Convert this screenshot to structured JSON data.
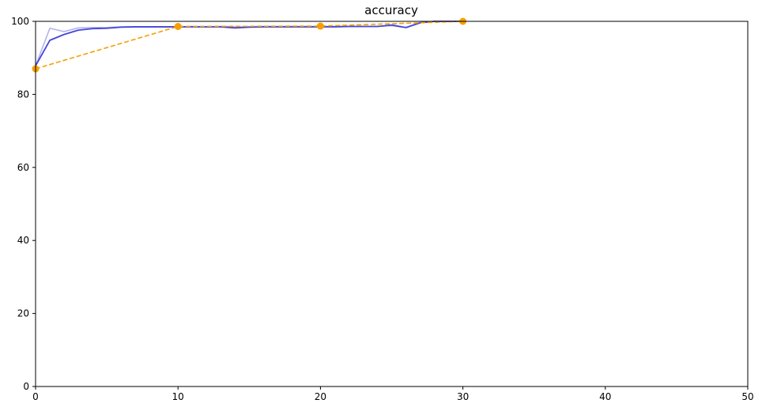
{
  "chart_data": {
    "type": "line",
    "title": "accuracy",
    "xlabel": "",
    "ylabel": "",
    "xlim": [
      0,
      50
    ],
    "ylim": [
      0,
      100
    ],
    "xticks": [
      0,
      10,
      20,
      30,
      40,
      50
    ],
    "yticks": [
      0,
      20,
      40,
      60,
      80,
      100
    ],
    "grid": false,
    "legend": "none",
    "series": [
      {
        "style": "solid-light",
        "color": "#b3b3f0",
        "x": [
          0,
          1,
          2,
          3,
          4,
          5,
          6,
          7,
          8,
          9,
          10,
          11,
          12,
          13,
          14,
          15,
          16,
          17,
          18,
          19,
          20,
          21,
          22,
          23,
          24,
          25,
          26,
          27,
          28,
          29,
          30
        ],
        "y": [
          87.8,
          98.1,
          97.2,
          98.2,
          98.3,
          98.3,
          98.5,
          98.5,
          98.5,
          98.5,
          98.5,
          98.6,
          98.5,
          98.6,
          98.5,
          98.5,
          98.6,
          98.6,
          98.6,
          98.6,
          98.6,
          98.6,
          98.6,
          98.6,
          98.6,
          98.8,
          98.3,
          99.7,
          100,
          100,
          100
        ]
      },
      {
        "style": "solid",
        "color": "#4444dd",
        "x": [
          0,
          1,
          2,
          3,
          4,
          5,
          6,
          7,
          8,
          9,
          10,
          11,
          12,
          13,
          14,
          15,
          16,
          17,
          18,
          19,
          20,
          21,
          22,
          23,
          24,
          25,
          26,
          27,
          28,
          29,
          30
        ],
        "y": [
          87.8,
          94.8,
          96.4,
          97.6,
          98.0,
          98.1,
          98.4,
          98.5,
          98.5,
          98.5,
          98.5,
          98.5,
          98.5,
          98.5,
          98.2,
          98.4,
          98.5,
          98.5,
          98.5,
          98.5,
          98.5,
          98.5,
          98.6,
          98.6,
          98.6,
          99.0,
          98.3,
          99.6,
          100,
          100,
          100
        ]
      },
      {
        "style": "dashed-markers",
        "color": "#f5a000",
        "x": [
          0,
          10,
          20,
          30
        ],
        "y": [
          87,
          98.6,
          98.7,
          100
        ]
      }
    ]
  }
}
